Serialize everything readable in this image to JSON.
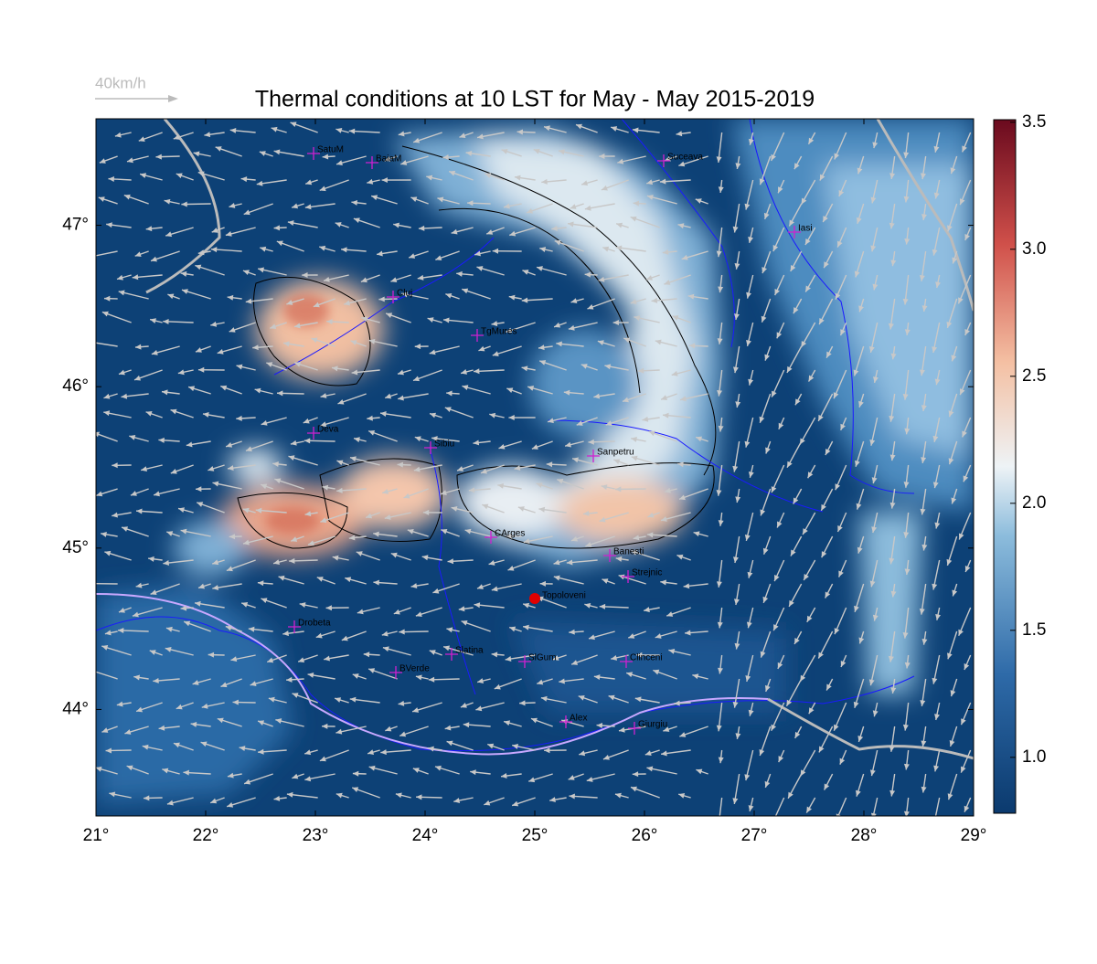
{
  "title": "Thermal conditions at 10 LST for May - May  2015-2019",
  "wind_legend": "40km/h",
  "map": {
    "xlim": [
      21,
      29
    ],
    "ylim": [
      43.34,
      47.66
    ],
    "xticks": [
      {
        "value": 21,
        "label": "21°"
      },
      {
        "value": 22,
        "label": "22°"
      },
      {
        "value": 23,
        "label": "23°"
      },
      {
        "value": 24,
        "label": "24°"
      },
      {
        "value": 25,
        "label": "25°"
      },
      {
        "value": 26,
        "label": "26°"
      },
      {
        "value": 27,
        "label": "27°"
      },
      {
        "value": 28,
        "label": "28°"
      },
      {
        "value": 29,
        "label": "29°"
      }
    ],
    "yticks": [
      {
        "value": 44,
        "label": "44°"
      },
      {
        "value": 45,
        "label": "45°"
      },
      {
        "value": 46,
        "label": "46°"
      },
      {
        "value": 47,
        "label": "47°"
      }
    ],
    "cities": [
      "SatuM",
      "BaiaM",
      "Suceava",
      "Iasi",
      "Cluj",
      "TgMures",
      "Deva",
      "Sibiu",
      "Sanpetru",
      "CArges",
      "Banesti",
      "Strejnic",
      "Drobeta",
      "Slatina",
      "SlGum",
      "BVerde",
      "Clinceni",
      "Alex",
      "Giurgiu"
    ],
    "site": "Topoloveni"
  },
  "colorbar": {
    "lim": [
      0.78,
      3.51
    ],
    "ticks": [
      {
        "value": 1,
        "label": "1.0"
      },
      1.5,
      {
        "value": 2,
        "label": "2.0"
      },
      2.5,
      {
        "value": 3,
        "label": "3.0"
      },
      3.5
    ]
  }
}
